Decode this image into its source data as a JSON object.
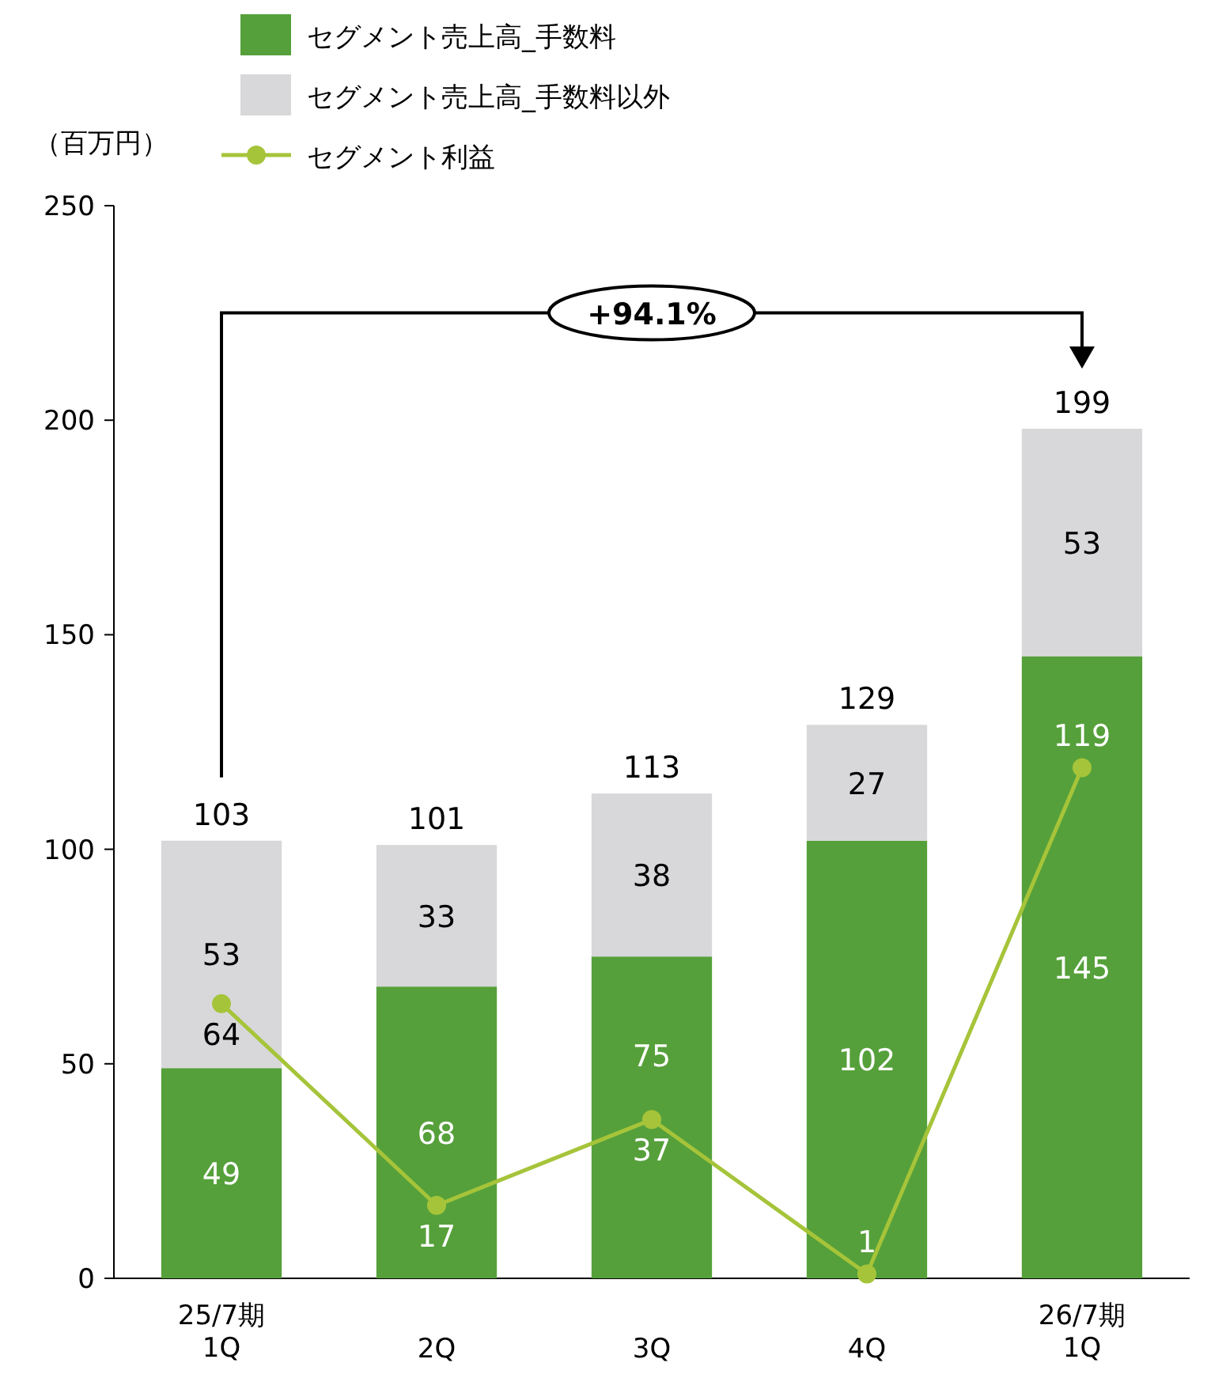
{
  "chart_data": {
    "type": "bar",
    "stacked": true,
    "ylabel": "（百万円）",
    "categories": [
      "25/7期\n1Q",
      "2Q",
      "3Q",
      "4Q",
      "26/7期\n1Q"
    ],
    "series": [
      {
        "name": "セグメント売上高_手数料",
        "color": "#55a03a",
        "values": [
          49,
          68,
          75,
          102,
          145
        ]
      },
      {
        "name": "セグメント売上高_手数料以外",
        "color": "#d8d8da",
        "values": [
          53,
          33,
          38,
          27,
          53
        ]
      },
      {
        "name": "セグメント利益",
        "type": "line",
        "color": "#a6c43a",
        "marker": "circle",
        "values": [
          64,
          17,
          37,
          1,
          119
        ]
      }
    ],
    "totals": [
      "103",
      "101",
      "113",
      "129",
      "199"
    ],
    "data_labels": true,
    "annotations": [
      "+94.1%"
    ],
    "ylim": [
      0,
      250
    ],
    "yticks": [
      0,
      50,
      100,
      150,
      200,
      250
    ],
    "grid": false,
    "legend": "top"
  }
}
